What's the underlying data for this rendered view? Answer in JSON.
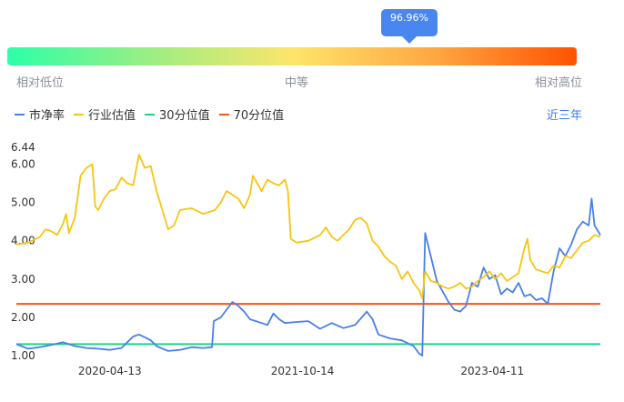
{
  "gauge": {
    "tooltip": "96.96%",
    "percentile": 0.9696,
    "low_label": "相对低位",
    "mid_label": "中等",
    "high_label": "相对高位"
  },
  "legend": {
    "items": [
      {
        "label": "市净率",
        "color": "#4a7fe8"
      },
      {
        "label": "行业估值",
        "color": "#f6c514"
      },
      {
        "label": "30分位值",
        "color": "#21d28a"
      },
      {
        "label": "70分位值",
        "color": "#f5561a"
      }
    ]
  },
  "range_button": "近三年",
  "chart_data": {
    "type": "line",
    "ylim": [
      1.0,
      6.44
    ],
    "y_ticks": [
      "1.00",
      "2.00",
      "3.00",
      "4.00",
      "5.00",
      "6.00",
      "6.44"
    ],
    "x_ticks": [
      {
        "label": "2020-04-13",
        "t": 0.16
      },
      {
        "label": "2021-10-14",
        "t": 0.49
      },
      {
        "label": "2023-04-11",
        "t": 0.815
      }
    ],
    "series": [
      {
        "name": "市净率",
        "color": "#4a7fe8",
        "points": [
          [
            0.0,
            1.3
          ],
          [
            0.02,
            1.18
          ],
          [
            0.04,
            1.22
          ],
          [
            0.06,
            1.28
          ],
          [
            0.08,
            1.35
          ],
          [
            0.1,
            1.25
          ],
          [
            0.12,
            1.2
          ],
          [
            0.14,
            1.18
          ],
          [
            0.16,
            1.15
          ],
          [
            0.18,
            1.2
          ],
          [
            0.19,
            1.35
          ],
          [
            0.2,
            1.5
          ],
          [
            0.21,
            1.55
          ],
          [
            0.22,
            1.48
          ],
          [
            0.23,
            1.4
          ],
          [
            0.24,
            1.25
          ],
          [
            0.26,
            1.12
          ],
          [
            0.28,
            1.15
          ],
          [
            0.3,
            1.22
          ],
          [
            0.32,
            1.2
          ],
          [
            0.335,
            1.22
          ],
          [
            0.338,
            1.9
          ],
          [
            0.35,
            2.0
          ],
          [
            0.36,
            2.2
          ],
          [
            0.37,
            2.4
          ],
          [
            0.38,
            2.3
          ],
          [
            0.39,
            2.15
          ],
          [
            0.4,
            1.95
          ],
          [
            0.42,
            1.85
          ],
          [
            0.43,
            1.8
          ],
          [
            0.44,
            2.1
          ],
          [
            0.45,
            1.95
          ],
          [
            0.46,
            1.85
          ],
          [
            0.48,
            1.88
          ],
          [
            0.5,
            1.9
          ],
          [
            0.52,
            1.7
          ],
          [
            0.54,
            1.85
          ],
          [
            0.56,
            1.72
          ],
          [
            0.58,
            1.8
          ],
          [
            0.6,
            2.15
          ],
          [
            0.61,
            1.95
          ],
          [
            0.62,
            1.55
          ],
          [
            0.64,
            1.45
          ],
          [
            0.66,
            1.4
          ],
          [
            0.68,
            1.25
          ],
          [
            0.69,
            1.05
          ],
          [
            0.695,
            1.0
          ],
          [
            0.7,
            4.2
          ],
          [
            0.72,
            2.95
          ],
          [
            0.74,
            2.4
          ],
          [
            0.75,
            2.2
          ],
          [
            0.76,
            2.15
          ],
          [
            0.77,
            2.3
          ],
          [
            0.78,
            2.9
          ],
          [
            0.79,
            2.8
          ],
          [
            0.8,
            3.3
          ],
          [
            0.81,
            3.0
          ],
          [
            0.82,
            3.1
          ],
          [
            0.83,
            2.6
          ],
          [
            0.84,
            2.75
          ],
          [
            0.85,
            2.65
          ],
          [
            0.86,
            2.9
          ],
          [
            0.87,
            2.55
          ],
          [
            0.88,
            2.6
          ],
          [
            0.89,
            2.45
          ],
          [
            0.9,
            2.5
          ],
          [
            0.91,
            2.35
          ],
          [
            0.92,
            3.2
          ],
          [
            0.93,
            3.8
          ],
          [
            0.94,
            3.6
          ],
          [
            0.95,
            3.9
          ],
          [
            0.96,
            4.3
          ],
          [
            0.97,
            4.5
          ],
          [
            0.98,
            4.4
          ],
          [
            0.985,
            5.1
          ],
          [
            0.99,
            4.4
          ],
          [
            1.0,
            4.15
          ]
        ]
      },
      {
        "name": "行业估值",
        "color": "#f6c514",
        "points": [
          [
            0.0,
            3.9
          ],
          [
            0.02,
            3.95
          ],
          [
            0.04,
            4.1
          ],
          [
            0.05,
            4.3
          ],
          [
            0.06,
            4.25
          ],
          [
            0.07,
            4.15
          ],
          [
            0.08,
            4.45
          ],
          [
            0.085,
            4.7
          ],
          [
            0.09,
            4.2
          ],
          [
            0.1,
            4.6
          ],
          [
            0.11,
            5.7
          ],
          [
            0.12,
            5.9
          ],
          [
            0.13,
            6.0
          ],
          [
            0.135,
            4.9
          ],
          [
            0.14,
            4.8
          ],
          [
            0.15,
            5.1
          ],
          [
            0.16,
            5.3
          ],
          [
            0.17,
            5.35
          ],
          [
            0.18,
            5.65
          ],
          [
            0.19,
            5.5
          ],
          [
            0.2,
            5.45
          ],
          [
            0.21,
            6.25
          ],
          [
            0.22,
            5.9
          ],
          [
            0.23,
            5.95
          ],
          [
            0.24,
            5.3
          ],
          [
            0.25,
            4.8
          ],
          [
            0.26,
            4.3
          ],
          [
            0.27,
            4.4
          ],
          [
            0.28,
            4.8
          ],
          [
            0.3,
            4.85
          ],
          [
            0.32,
            4.7
          ],
          [
            0.34,
            4.8
          ],
          [
            0.35,
            5.0
          ],
          [
            0.36,
            5.3
          ],
          [
            0.37,
            5.2
          ],
          [
            0.38,
            5.1
          ],
          [
            0.39,
            4.85
          ],
          [
            0.4,
            5.2
          ],
          [
            0.405,
            5.7
          ],
          [
            0.42,
            5.3
          ],
          [
            0.43,
            5.6
          ],
          [
            0.44,
            5.5
          ],
          [
            0.45,
            5.45
          ],
          [
            0.46,
            5.6
          ],
          [
            0.465,
            5.3
          ],
          [
            0.47,
            4.05
          ],
          [
            0.48,
            3.95
          ],
          [
            0.5,
            4.0
          ],
          [
            0.52,
            4.15
          ],
          [
            0.53,
            4.35
          ],
          [
            0.54,
            4.1
          ],
          [
            0.55,
            4.0
          ],
          [
            0.56,
            4.15
          ],
          [
            0.57,
            4.3
          ],
          [
            0.58,
            4.55
          ],
          [
            0.59,
            4.6
          ],
          [
            0.6,
            4.45
          ],
          [
            0.61,
            4.0
          ],
          [
            0.62,
            3.85
          ],
          [
            0.63,
            3.6
          ],
          [
            0.64,
            3.45
          ],
          [
            0.65,
            3.35
          ],
          [
            0.66,
            3.0
          ],
          [
            0.67,
            3.2
          ],
          [
            0.68,
            2.9
          ],
          [
            0.69,
            2.7
          ],
          [
            0.695,
            2.5
          ],
          [
            0.7,
            3.2
          ],
          [
            0.71,
            2.95
          ],
          [
            0.72,
            2.9
          ],
          [
            0.73,
            2.8
          ],
          [
            0.74,
            2.75
          ],
          [
            0.75,
            2.8
          ],
          [
            0.76,
            2.9
          ],
          [
            0.77,
            2.75
          ],
          [
            0.78,
            2.8
          ],
          [
            0.79,
            2.95
          ],
          [
            0.8,
            3.05
          ],
          [
            0.81,
            3.2
          ],
          [
            0.82,
            3.0
          ],
          [
            0.83,
            3.15
          ],
          [
            0.84,
            2.95
          ],
          [
            0.85,
            3.05
          ],
          [
            0.86,
            3.15
          ],
          [
            0.87,
            3.8
          ],
          [
            0.875,
            4.05
          ],
          [
            0.88,
            3.5
          ],
          [
            0.89,
            3.25
          ],
          [
            0.9,
            3.2
          ],
          [
            0.91,
            3.15
          ],
          [
            0.92,
            3.35
          ],
          [
            0.93,
            3.3
          ],
          [
            0.94,
            3.6
          ],
          [
            0.95,
            3.55
          ],
          [
            0.96,
            3.75
          ],
          [
            0.97,
            3.95
          ],
          [
            0.98,
            4.0
          ],
          [
            0.99,
            4.15
          ],
          [
            1.0,
            4.1
          ]
        ]
      }
    ],
    "reference_lines": [
      {
        "name": "30分位值",
        "value": 1.3,
        "color": "#21d28a"
      },
      {
        "name": "70分位值",
        "value": 2.35,
        "color": "#f5561a"
      }
    ]
  }
}
